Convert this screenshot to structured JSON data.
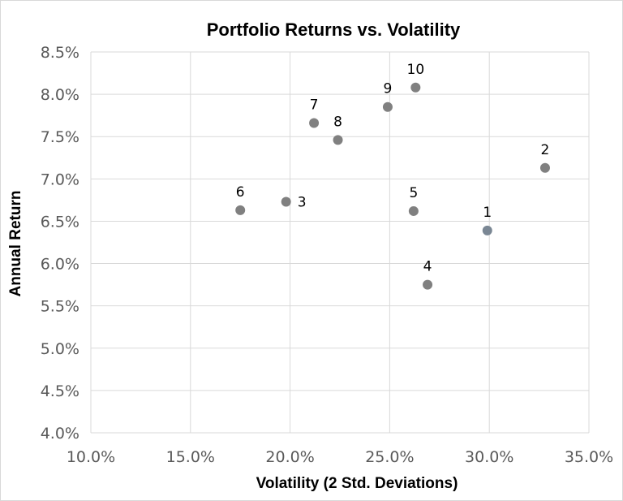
{
  "chart_data": {
    "type": "scatter",
    "title": "Portfolio Returns vs. Volatility",
    "xlabel": "Volatility (2 Std. Deviations)",
    "ylabel": "Annual Return",
    "xlim": [
      0.1,
      0.35
    ],
    "ylim": [
      0.04,
      0.085
    ],
    "x_ticks": [
      "10.0%",
      "15.0%",
      "20.0%",
      "25.0%",
      "30.0%",
      "35.0%"
    ],
    "x_tick_values": [
      0.1,
      0.15,
      0.2,
      0.25,
      0.3,
      0.35
    ],
    "y_ticks": [
      "4.0%",
      "4.5%",
      "5.0%",
      "5.5%",
      "6.0%",
      "6.5%",
      "7.0%",
      "7.5%",
      "8.0%",
      "8.5%"
    ],
    "y_tick_values": [
      0.04,
      0.045,
      0.05,
      0.055,
      0.06,
      0.065,
      0.07,
      0.075,
      0.08,
      0.085
    ],
    "grid": true,
    "points": [
      {
        "label": "1",
        "x": 0.299,
        "y": 0.0639,
        "color": "#7a8794",
        "label_pos": "above"
      },
      {
        "label": "2",
        "x": 0.328,
        "y": 0.0713,
        "color": "#808080",
        "label_pos": "above"
      },
      {
        "label": "3",
        "x": 0.198,
        "y": 0.0673,
        "color": "#808080",
        "label_pos": "right"
      },
      {
        "label": "4",
        "x": 0.269,
        "y": 0.0575,
        "color": "#808080",
        "label_pos": "above"
      },
      {
        "label": "5",
        "x": 0.262,
        "y": 0.0662,
        "color": "#808080",
        "label_pos": "above"
      },
      {
        "label": "6",
        "x": 0.175,
        "y": 0.0663,
        "color": "#808080",
        "label_pos": "above"
      },
      {
        "label": "7",
        "x": 0.212,
        "y": 0.0766,
        "color": "#808080",
        "label_pos": "above"
      },
      {
        "label": "8",
        "x": 0.224,
        "y": 0.0746,
        "color": "#808080",
        "label_pos": "above"
      },
      {
        "label": "9",
        "x": 0.249,
        "y": 0.0785,
        "color": "#808080",
        "label_pos": "above"
      },
      {
        "label": "10",
        "x": 0.263,
        "y": 0.0808,
        "color": "#808080",
        "label_pos": "above"
      }
    ]
  }
}
